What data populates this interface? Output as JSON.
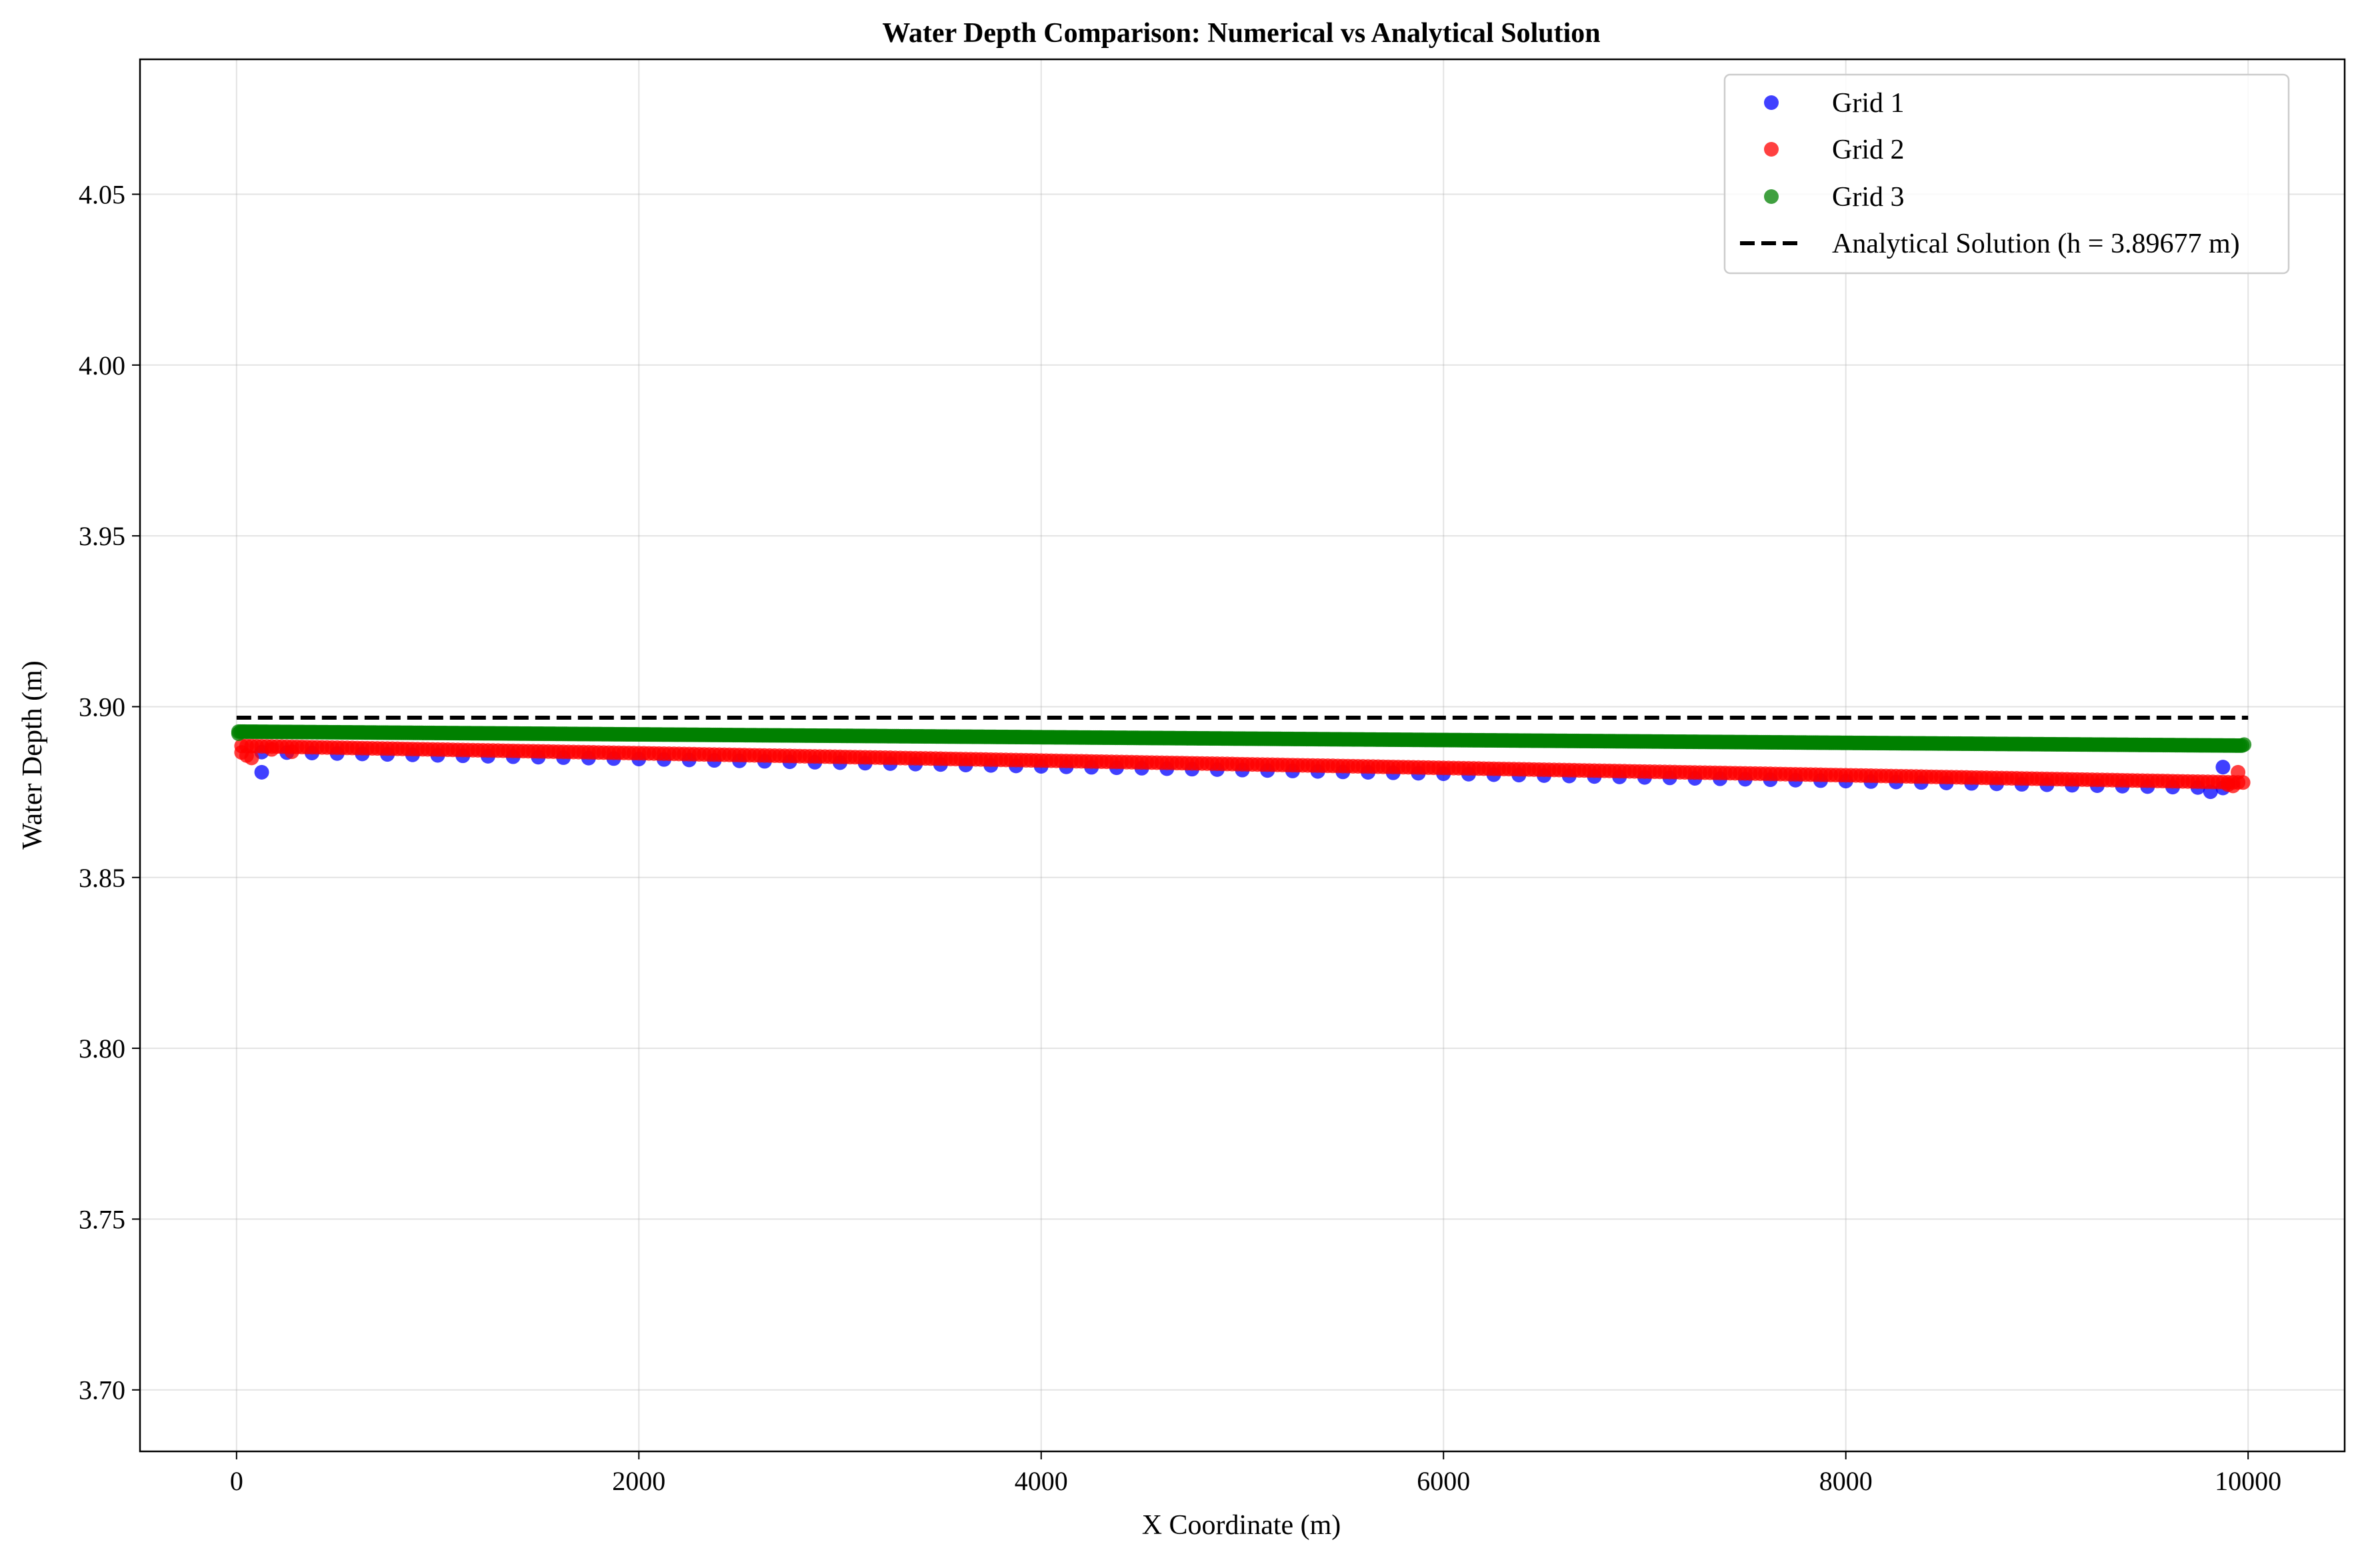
{
  "chart_data": {
    "type": "scatter",
    "title": "Water Depth Comparison: Numerical vs Analytical Solution",
    "xlabel": "X Coordinate (m)",
    "ylabel": "Water Depth (m)",
    "xlim": [
      -480,
      10480
    ],
    "ylim": [
      3.682,
      4.0895
    ],
    "xticks": [
      0,
      2000,
      4000,
      6000,
      8000,
      10000
    ],
    "xtick_labels": [
      "0",
      "2000",
      "4000",
      "6000",
      "8000",
      "10000"
    ],
    "yticks": [
      3.7,
      3.75,
      3.8,
      3.85,
      3.9,
      3.95,
      4.0,
      4.05
    ],
    "ytick_labels": [
      "3.70",
      "3.75",
      "3.80",
      "3.85",
      "3.90",
      "3.95",
      "4.00",
      "4.05"
    ],
    "grid": true,
    "legend_position": "top-right",
    "series": [
      {
        "name": "Grid 1",
        "color": "#0000ff",
        "marker": "circle",
        "x_start": 125,
        "x_step": 125,
        "count": 79,
        "y_start": 3.8867,
        "y_end": 3.8762,
        "extra_points": [
          {
            "x": 125,
            "y": 3.8808
          },
          {
            "x": 9875,
            "y": 3.8823
          },
          {
            "x": 9813,
            "y": 3.8751
          }
        ]
      },
      {
        "name": "Grid 2",
        "color": "#ff0000",
        "marker": "circle",
        "x_start": 25,
        "x_step": 25,
        "count": 399,
        "y_start": 3.8885,
        "y_end": 3.8778,
        "extra_points": [
          {
            "x": 25,
            "y": 3.8866
          },
          {
            "x": 50,
            "y": 3.8857
          },
          {
            "x": 75,
            "y": 3.885
          },
          {
            "x": 175,
            "y": 3.8875
          },
          {
            "x": 275,
            "y": 3.8868
          },
          {
            "x": 9900,
            "y": 3.8772
          },
          {
            "x": 9925,
            "y": 3.8768
          },
          {
            "x": 9950,
            "y": 3.8808
          }
        ]
      },
      {
        "name": "Grid 3",
        "color": "#008000",
        "marker": "circle",
        "x_start": 10,
        "x_step": 10,
        "count": 997,
        "y_start": 3.8927,
        "y_end": 3.8886,
        "extra_points": [
          {
            "x": 10,
            "y": 3.8921
          },
          {
            "x": 9980,
            "y": 3.8889
          }
        ]
      },
      {
        "name": "Analytical Solution (h = 3.89677 m)",
        "color": "#000000",
        "line_style": "dashed",
        "x": [
          0,
          10000
        ],
        "y": [
          3.89677,
          3.89677
        ]
      }
    ]
  }
}
